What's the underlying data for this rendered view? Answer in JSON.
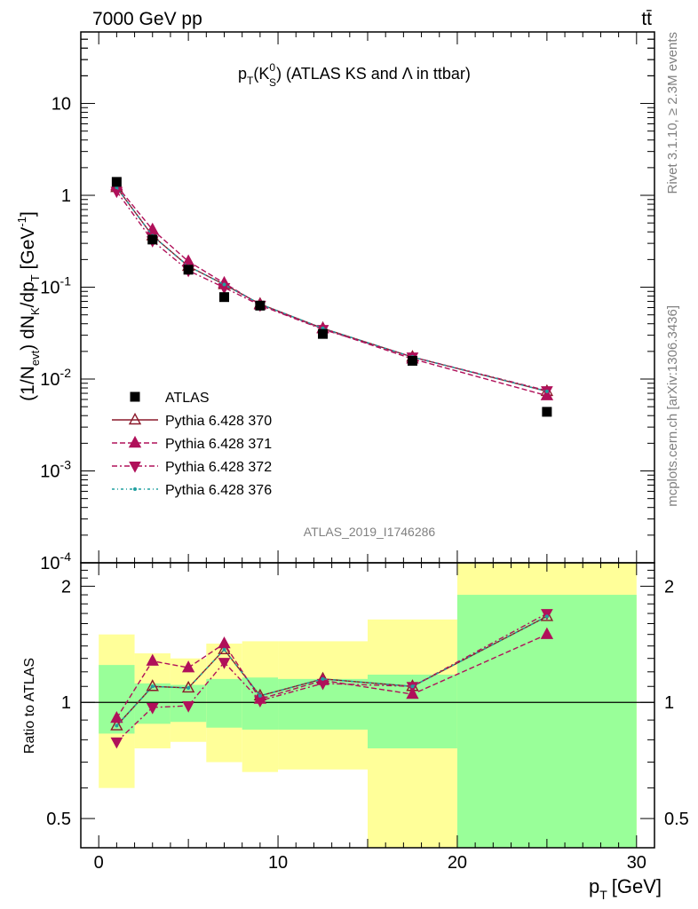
{
  "header": {
    "left": "7000 GeV pp",
    "right": "tt̄"
  },
  "title": {
    "pre": "p",
    "sub1": "T",
    "mid": "(K",
    "sup": "0",
    "sub2": "S",
    "post": ") (ATLAS KS and Λ in ttbar)"
  },
  "side_labels": {
    "top": "Rivet 3.1.10, ≥ 2.3M events",
    "bottom": "mcplots.cern.ch [arXiv:1306.3436]"
  },
  "analysis_id": "ATLAS_2019_I1746286",
  "axes": {
    "ylabel_main": "(1/N_evt) dN_K/dp_T [GeV^-1]",
    "ylabel_ratio": "Ratio to ATLAS",
    "xlabel": "p_T [GeV]",
    "xlabel_main": "p",
    "xlabel_sub": "T",
    "xlabel_unit": "[GeV]",
    "x_ticks": [
      "0",
      "10",
      "20",
      "30"
    ],
    "y_main_ticks": [
      {
        "base": "10",
        "exp": "-4"
      },
      {
        "base": "10",
        "exp": "-3"
      },
      {
        "base": "10",
        "exp": "-2"
      },
      {
        "base": "10",
        "exp": "-1"
      },
      {
        "base": "1",
        "exp": ""
      },
      {
        "base": "10",
        "exp": ""
      }
    ],
    "y_ratio_ticks": [
      "0.5",
      "1",
      "2"
    ]
  },
  "legend": [
    {
      "label": "ATLAS",
      "color": "#000000",
      "marker": "square"
    },
    {
      "label": "Pythia 6.428 370",
      "color": "#8b1a2b",
      "marker": "open-triangle-up"
    },
    {
      "label": "Pythia 6.428 371",
      "color": "#b0105a",
      "marker": "triangle-up"
    },
    {
      "label": "Pythia 6.428 372",
      "color": "#b0105a",
      "marker": "triangle-down"
    },
    {
      "label": "Pythia 6.428 376",
      "color": "#20a0a0",
      "marker": "dot"
    }
  ],
  "chart_data": {
    "type": "line",
    "x_scale": "linear",
    "y_scale_main": "log",
    "y_scale_ratio": "log",
    "xlim": [
      -1,
      31
    ],
    "ylim_main": [
      0.0001,
      60
    ],
    "ylim_ratio": [
      0.42,
      2.3
    ],
    "bins": [
      {
        "lo": 0,
        "hi": 2,
        "x": 1
      },
      {
        "lo": 2,
        "hi": 4,
        "x": 3
      },
      {
        "lo": 4,
        "hi": 6,
        "x": 5
      },
      {
        "lo": 6,
        "hi": 8,
        "x": 7
      },
      {
        "lo": 8,
        "hi": 10,
        "x": 9
      },
      {
        "lo": 10,
        "hi": 15,
        "x": 12.5
      },
      {
        "lo": 15,
        "hi": 20,
        "x": 17.5
      },
      {
        "lo": 20,
        "hi": 30,
        "x": 25
      }
    ],
    "data": {
      "name": "ATLAS",
      "values": [
        1.4,
        0.33,
        0.155,
        0.078,
        0.063,
        0.031,
        0.0158,
        0.0044
      ],
      "band_stat": [
        [
          0.83,
          1.25
        ],
        [
          0.88,
          1.12
        ],
        [
          0.89,
          1.11
        ],
        [
          0.86,
          1.15
        ],
        [
          0.85,
          1.16
        ],
        [
          0.85,
          1.15
        ],
        [
          0.76,
          1.18
        ],
        [
          0.42,
          1.9
        ]
      ],
      "band_total": [
        [
          0.6,
          1.5
        ],
        [
          0.76,
          1.34
        ],
        [
          0.79,
          1.3
        ],
        [
          0.7,
          1.42
        ],
        [
          0.66,
          1.44
        ],
        [
          0.67,
          1.44
        ],
        [
          0.39,
          1.64
        ],
        [
          0.39,
          2.3
        ]
      ]
    },
    "series": [
      {
        "name": "Pythia 6.428 370",
        "ratio": [
          0.87,
          1.1,
          1.09,
          1.37,
          1.04,
          1.15,
          1.1,
          1.67
        ]
      },
      {
        "name": "Pythia 6.428 371",
        "ratio": [
          0.91,
          1.28,
          1.23,
          1.42,
          1.02,
          1.14,
          1.05,
          1.5
        ]
      },
      {
        "name": "Pythia 6.428 372",
        "ratio": [
          0.79,
          0.97,
          0.98,
          1.27,
          1.01,
          1.12,
          1.1,
          1.7
        ]
      },
      {
        "name": "Pythia 6.428 376",
        "ratio": [
          0.87,
          1.1,
          1.09,
          1.37,
          1.04,
          1.15,
          1.1,
          1.67
        ]
      }
    ]
  }
}
